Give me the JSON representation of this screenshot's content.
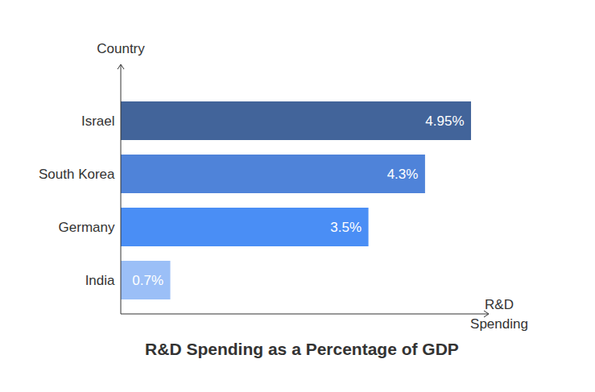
{
  "chart_data": {
    "type": "bar",
    "title": "R&D Spending as a Percentage of GDP",
    "orientation": "horizontal",
    "x_label": "R&D Spending",
    "y_label": "Country",
    "categories": [
      "Israel",
      "South Korea",
      "Germany",
      "India"
    ],
    "values": [
      4.95,
      4.3,
      3.5,
      0.7
    ],
    "value_labels": [
      "4.95%",
      "4.3%",
      "3.5%",
      "0.7%"
    ],
    "colors": [
      "#42649a",
      "#4f83d9",
      "#4a8ef5",
      "#9bbff7"
    ],
    "xlim": [
      0,
      5.2
    ],
    "data_labels": true,
    "tick_labels": "y",
    "grid": false
  }
}
